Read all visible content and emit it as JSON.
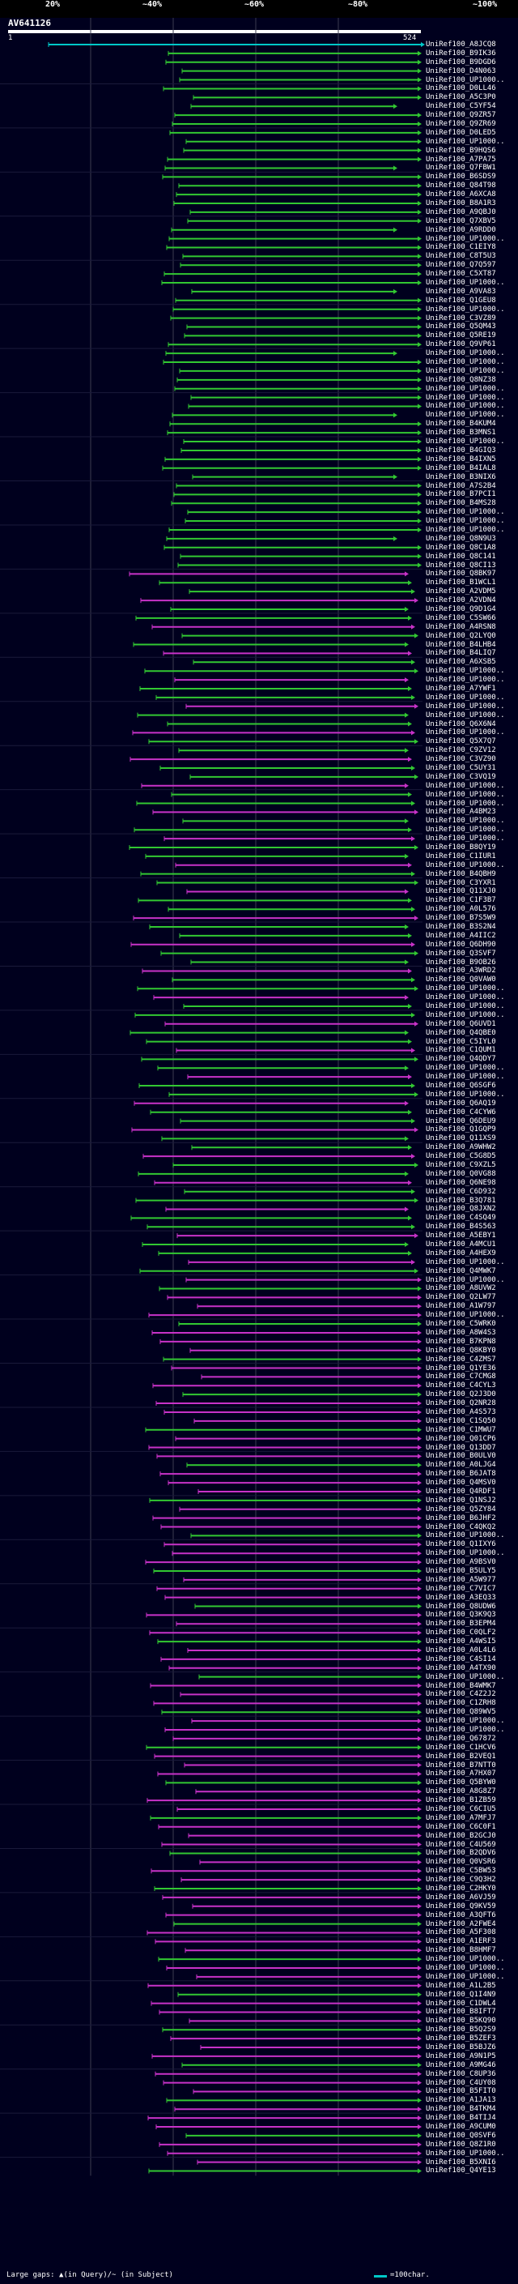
{
  "header": {
    "percent_labels": [
      "20%",
      "~40%",
      "~60%",
      "~80%",
      "~100%"
    ],
    "color_bands": [
      {
        "name": "red-band",
        "color": "#e00000"
      },
      {
        "name": "orange-band",
        "color": "#e07000"
      },
      {
        "name": "purple-band",
        "color": "#a000c0"
      },
      {
        "name": "green-band",
        "color": "#00a000"
      },
      {
        "name": "cyan-band",
        "color": "#00c8c8"
      }
    ]
  },
  "query": {
    "name": "AV641126",
    "start": "1",
    "end": "524"
  },
  "colors": {
    "background": "#00001e",
    "grid": "#3c3c50",
    "green": "#32c832",
    "magenta": "#c832c8",
    "cyan": "#00c8c8",
    "white": "#ffffff"
  },
  "hits": [
    "UniRef100_A8JCQ8",
    "UniRef100_B9IK36",
    "UniRef100_B9DGD6",
    "UniRef100_D4N063",
    "UniRef100_UP1000..",
    "UniRef100_D0LL46",
    "UniRef100_A5C3P0",
    "UniRef100_C5YF54",
    "UniRef100_Q9ZR57",
    "UniRef100_Q9ZR69",
    "UniRef100_D0LED5",
    "UniRef100_UP1000..",
    "UniRef100_B9HQS6",
    "UniRef100_A7PA75",
    "UniRef100_Q7FBW1",
    "UniRef100_B6SDS9",
    "UniRef100_Q84T98",
    "UniRef100_A6XCA8",
    "UniRef100_B8A1R3",
    "UniRef100_A9QBJ0",
    "UniRef100_Q7XBV5",
    "UniRef100_A9RDD0",
    "UniRef100_UP1000..",
    "UniRef100_C1EIY8",
    "UniRef100_C8T5U3",
    "UniRef100_Q7Q597",
    "UniRef100_C5XT87",
    "UniRef100_UP1000..",
    "UniRef100_A9VA83",
    "UniRef100_Q1GEU8",
    "UniRef100_UP1000..",
    "UniRef100_C3VZ89",
    "UniRef100_Q5QM43",
    "UniRef100_Q5RE19",
    "UniRef100_Q9VP61",
    "UniRef100_UP1000..",
    "UniRef100_UP1000..",
    "UniRef100_UP1000..",
    "UniRef100_Q8NZ38",
    "UniRef100_UP1000..",
    "UniRef100_UP1000..",
    "UniRef100_UP1000..",
    "UniRef100_UP1000..",
    "UniRef100_B4KUM4",
    "UniRef100_B3MNS1",
    "UniRef100_UP1000..",
    "UniRef100_B4GIQ3",
    "UniRef100_B4IXN5",
    "UniRef100_B4IAL8",
    "UniRef100_B3NIX6",
    "UniRef100_A7S2B4",
    "UniRef100_B7PCI1",
    "UniRef100_B4MS28",
    "UniRef100_UP1000..",
    "UniRef100_UP1000..",
    "UniRef100_UP1000..",
    "UniRef100_Q8N9U3",
    "UniRef100_Q8C1A8",
    "UniRef100_Q8C141",
    "UniRef100_Q8CI13",
    "UniRef100_Q8BK97",
    "UniRef100_B1WCL1",
    "UniRef100_A2VDM5",
    "UniRef100_A2VDN4",
    "UniRef100_Q9D1G4",
    "UniRef100_C5SW66",
    "UniRef100_A4RSN8",
    "UniRef100_Q2LYQ0",
    "UniRef100_B4LHB4",
    "UniRef100_B4LIQ7",
    "UniRef100_A6XSB5",
    "UniRef100_UP1000..",
    "UniRef100_UP1000..",
    "UniRef100_A7YWF1",
    "UniRef100_UP1000..",
    "UniRef100_UP1000..",
    "UniRef100_UP1000..",
    "UniRef100_Q6X6N4",
    "UniRef100_UP1000..",
    "UniRef100_Q5X7Q7",
    "UniRef100_C9ZV12",
    "UniRef100_C3VZ90",
    "UniRef100_C5UY31",
    "UniRef100_C3VQ19",
    "UniRef100_UP1000..",
    "UniRef100_UP1000..",
    "UniRef100_UP1000..",
    "UniRef100_A4BM23",
    "UniRef100_UP1000..",
    "UniRef100_UP1000..",
    "UniRef100_UP1000..",
    "UniRef100_B8QY19",
    "UniRef100_C1IUR1",
    "UniRef100_UP1000..",
    "UniRef100_B4QBH9",
    "UniRef100_C3YXR1",
    "UniRef100_Q11XJ0",
    "UniRef100_C1F3B7",
    "UniRef100_A0L576",
    "UniRef100_B7S5W9",
    "UniRef100_B3S2N4",
    "UniRef100_A4IIC2",
    "UniRef100_Q6DH90",
    "UniRef100_Q3SVF7",
    "UniRef100_B9OB26",
    "UniRef100_A3WRD2",
    "UniRef100_Q0VAW0",
    "UniRef100_UP1000..",
    "UniRef100_UP1000..",
    "UniRef100_UP1000..",
    "UniRef100_UP1000..",
    "UniRef100_Q6UVD1",
    "UniRef100_Q4QBE0",
    "UniRef100_C5IYL0",
    "UniRef100_C1QUM1",
    "UniRef100_Q4QDY7",
    "UniRef100_UP1000..",
    "UniRef100_UP1000..",
    "UniRef100_Q6SGF6",
    "UniRef100_UP1000..",
    "UniRef100_Q6AQ19",
    "UniRef100_C4CYW6",
    "UniRef100_Q6DEU9",
    "UniRef100_Q1GQP9",
    "UniRef100_Q11XS9",
    "UniRef100_A9WHW2",
    "UniRef100_C5G8D5",
    "UniRef100_C9XZL5",
    "UniRef100_Q0VG88",
    "UniRef100_Q6NE98",
    "UniRef100_C6D932",
    "UniRef100_B3Q781",
    "UniRef100_Q8JXN2",
    "UniRef100_C4SQ49",
    "UniRef100_B4S563",
    "UniRef100_A5EBY1",
    "UniRef100_A4MCU1",
    "UniRef100_A4HEX9",
    "UniRef100_UP1000..",
    "UniRef100_Q4MWK7",
    "UniRef100_UP1000..",
    "UniRef100_A8UVW2",
    "UniRef100_Q2LW77",
    "UniRef100_A1W797",
    "UniRef100_UP1000..",
    "UniRef100_C5WRK0",
    "UniRef100_A8W4S3",
    "UniRef100_B7KPN8",
    "UniRef100_Q8KBY0",
    "UniRef100_C4ZMS7",
    "UniRef100_Q1YE36",
    "UniRef100_C7CMG8",
    "UniRef100_C4CYL3",
    "UniRef100_Q2J3D0",
    "UniRef100_Q2NR28",
    "UniRef100_A4S573",
    "UniRef100_C1SQ50",
    "UniRef100_C1MWU7",
    "UniRef100_Q01CP6",
    "UniRef100_Q13DD7",
    "UniRef100_B0ULV0",
    "UniRef100_A0LJG4",
    "UniRef100_B6JAT8",
    "UniRef100_Q4MSV0",
    "UniRef100_Q4RDF1",
    "UniRef100_Q1NSJ2",
    "UniRef100_Q5ZY84",
    "UniRef100_B6JHF2",
    "UniRef100_C4QKQ2",
    "UniRef100_UP1000..",
    "UniRef100_Q1IXY6",
    "UniRef100_UP1000..",
    "UniRef100_A9BSV0",
    "UniRef100_B5ULY5",
    "UniRef100_A5W977",
    "UniRef100_C7VIC7",
    "UniRef100_A3EQ33",
    "UniRef100_Q8UDW6",
    "UniRef100_Q3K9Q3",
    "UniRef100_B3EPM4",
    "UniRef100_C0QLF2",
    "UniRef100_A4WSI5",
    "UniRef100_A0L4L6",
    "UniRef100_C4SI14",
    "UniRef100_A4TX90",
    "UniRef100_UP1000..",
    "UniRef100_B4WMK7",
    "UniRef100_C4Z2J2",
    "UniRef100_C1ZRH8",
    "UniRef100_Q89WV5",
    "UniRef100_UP1000..",
    "UniRef100_UP1000..",
    "UniRef100_Q67872",
    "UniRef100_C1HCV6",
    "UniRef100_B2VEQ1",
    "UniRef100_B7NTT0",
    "UniRef100_A7HX07",
    "UniRef100_Q5BYW0",
    "UniRef100_A8G8Z7",
    "UniRef100_B1ZB59",
    "UniRef100_C6CIU5",
    "UniRef100_A7MFJ7",
    "UniRef100_C6C0F1",
    "UniRef100_B2GCJ0",
    "UniRef100_C4U569",
    "UniRef100_B2QDV6",
    "UniRef100_Q0VSR6",
    "UniRef100_C5BW53",
    "UniRef100_C9Q3H2",
    "UniRef100_C2HKY0",
    "UniRef100_A6VJ59",
    "UniRef100_Q9KV59",
    "UniRef100_A3QFT6",
    "UniRef100_A2FWE4",
    "UniRef100_A5F308",
    "UniRef100_A1ERF3",
    "UniRef100_B8HMF7",
    "UniRef100_UP1000..",
    "UniRef100_UP1000..",
    "UniRef100_UP1000..",
    "UniRef100_A1L2B5",
    "UniRef100_Q1I4N9",
    "UniRef100_C1DWL4",
    "UniRef100_B8IFT7",
    "UniRef100_B5KQ90",
    "UniRef100_B5Q2S9",
    "UniRef100_B5ZEF3",
    "UniRef100_B5BJZ6",
    "UniRef100_A9N1P5",
    "UniRef100_A9MG46",
    "UniRef100_C8UP36",
    "UniRef100_C4UY08",
    "UniRef100_B5FIT0",
    "UniRef100_A1JA13",
    "UniRef100_B4TKM4",
    "UniRef100_B4TIJ4",
    "UniRef100_A9CUM0",
    "UniRef100_Q0SVF6",
    "UniRef100_Q8Z1R0",
    "UniRef100_UP1000..",
    "UniRef100_B5XNI6",
    "UniRef100_Q4YE13"
  ],
  "footer": {
    "legend": "Large gaps: ▲(in Query)/~ (in Subject)",
    "scale_label": "=100char."
  }
}
